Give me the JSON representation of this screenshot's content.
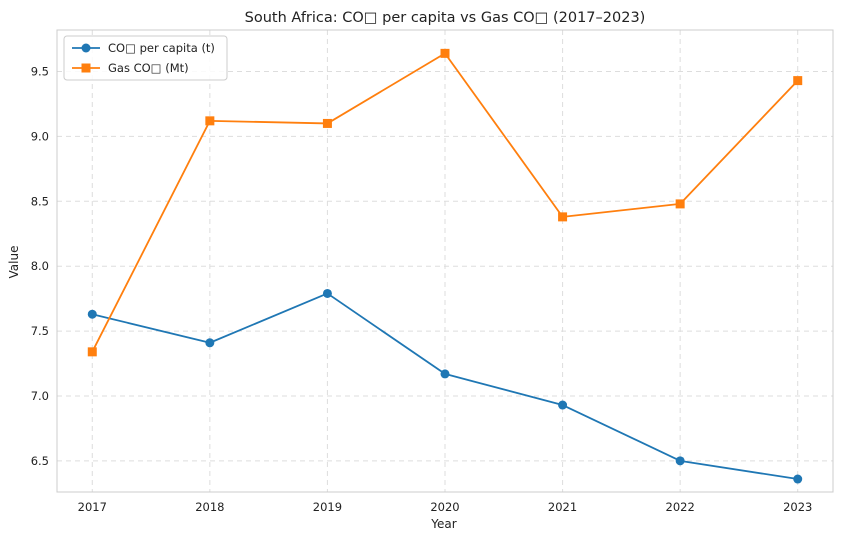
{
  "chart_data": {
    "type": "line",
    "title": "South Africa: CO□ per capita vs Gas CO□ (2017–2023)",
    "xlabel": "Year",
    "ylabel": "Value",
    "x": [
      2017,
      2018,
      2019,
      2020,
      2021,
      2022,
      2023
    ],
    "x_tick_labels": [
      "2017",
      "2018",
      "2019",
      "2020",
      "2021",
      "2022",
      "2023"
    ],
    "ylim": [
      6.26,
      9.82
    ],
    "y_ticks": [
      6.5,
      7.0,
      7.5,
      8.0,
      8.5,
      9.0,
      9.5
    ],
    "y_tick_labels": [
      "6.5",
      "7.0",
      "7.5",
      "8.0",
      "8.5",
      "9.0",
      "9.5"
    ],
    "grid": true,
    "legend_position": "top-left",
    "series": [
      {
        "name": "CO□ per capita (t)",
        "color": "#1f77b4",
        "marker": "circle",
        "values": [
          7.63,
          7.41,
          7.79,
          7.17,
          6.93,
          6.5,
          6.36
        ]
      },
      {
        "name": "Gas CO□ (Mt)",
        "color": "#ff7f0e",
        "marker": "square",
        "values": [
          7.34,
          9.12,
          9.1,
          9.64,
          8.38,
          8.48,
          9.43
        ]
      }
    ]
  }
}
